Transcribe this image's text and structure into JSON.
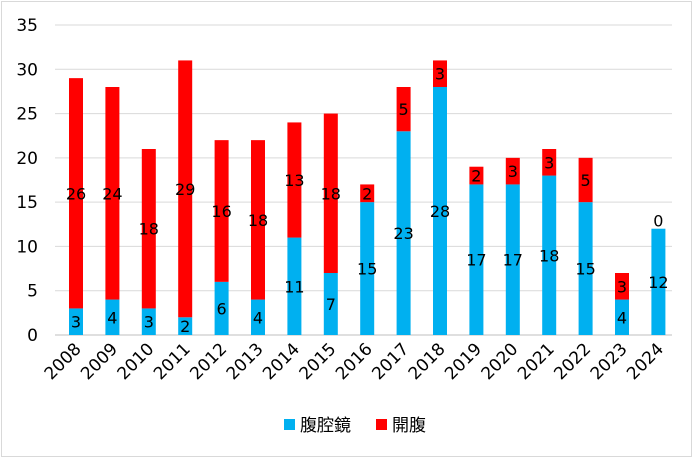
{
  "chart_data": {
    "type": "bar",
    "stacked": true,
    "title": "",
    "xlabel": "",
    "ylabel": "",
    "categories": [
      "2008",
      "2009",
      "2010",
      "2011",
      "2012",
      "2013",
      "2014",
      "2015",
      "2016",
      "2017",
      "2018",
      "2019",
      "2020",
      "2021",
      "2022",
      "2023",
      "2024"
    ],
    "series": [
      {
        "name": "腹腔鏡",
        "color": "#00b0f0",
        "values": [
          3,
          4,
          3,
          2,
          6,
          4,
          11,
          7,
          15,
          23,
          28,
          17,
          17,
          18,
          15,
          4,
          12
        ]
      },
      {
        "name": "開腹",
        "color": "#ff0000",
        "values": [
          26,
          24,
          18,
          29,
          16,
          18,
          13,
          18,
          2,
          5,
          3,
          2,
          3,
          3,
          5,
          3,
          0
        ]
      }
    ],
    "ylim": [
      0,
      35
    ],
    "yticks": [
      0,
      5,
      10,
      15,
      20,
      25,
      30,
      35
    ],
    "grid": true,
    "legend_position": "bottom"
  }
}
